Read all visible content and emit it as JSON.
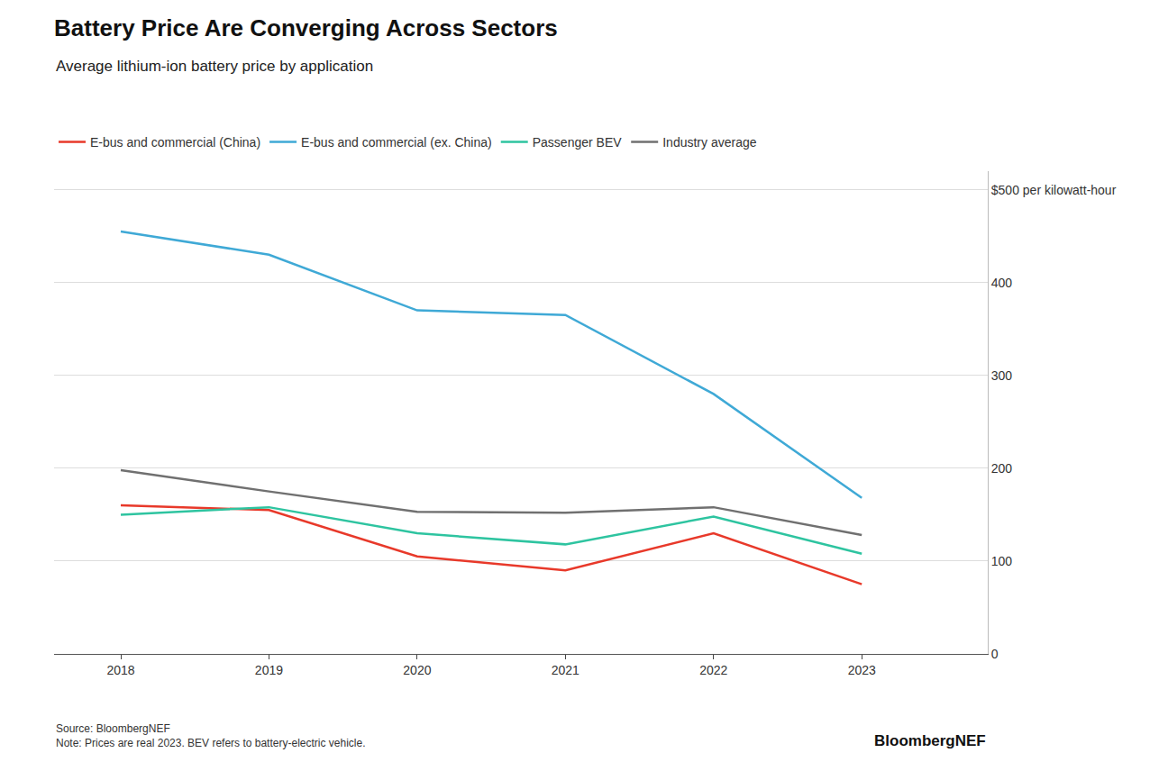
{
  "chart_data": {
    "type": "line",
    "title": "Battery Price Are Converging Across Sectors",
    "subtitle": "Average lithium-ion battery price by application",
    "annotations": [
      "Source: BloombergNEF\nNote: Prices are real 2023. BEV refers to battery-electric vehicle.",
      "BloombergNEF"
    ],
    "x": [
      2018,
      2019,
      2020,
      2021,
      2022,
      2023
    ],
    "series": [
      {
        "name": "E-bus and commercial (China)",
        "color": "#E8392A",
        "values": [
          160,
          155,
          105,
          90,
          130,
          75
        ]
      },
      {
        "name": "E-bus and commercial (ex. China)",
        "color": "#3FA9D6",
        "values": [
          455,
          430,
          370,
          365,
          280,
          168
        ]
      },
      {
        "name": "Passenger BEV",
        "color": "#2EC4A0",
        "values": [
          150,
          158,
          130,
          118,
          148,
          108
        ]
      },
      {
        "name": "Industry average",
        "color": "#707070",
        "values": [
          198,
          175,
          153,
          152,
          158,
          128
        ]
      }
    ],
    "xlim": [
      2017.55,
      2023.85
    ],
    "xticks": [
      2018,
      2019,
      2020,
      2021,
      2022,
      2023
    ],
    "ylim": [
      0,
      520
    ],
    "yticks": [
      0,
      100,
      200,
      300,
      400,
      {
        "value": 500,
        "label": "$500 per kilowatt-hour"
      }
    ],
    "grid": true,
    "legend": "top left"
  }
}
